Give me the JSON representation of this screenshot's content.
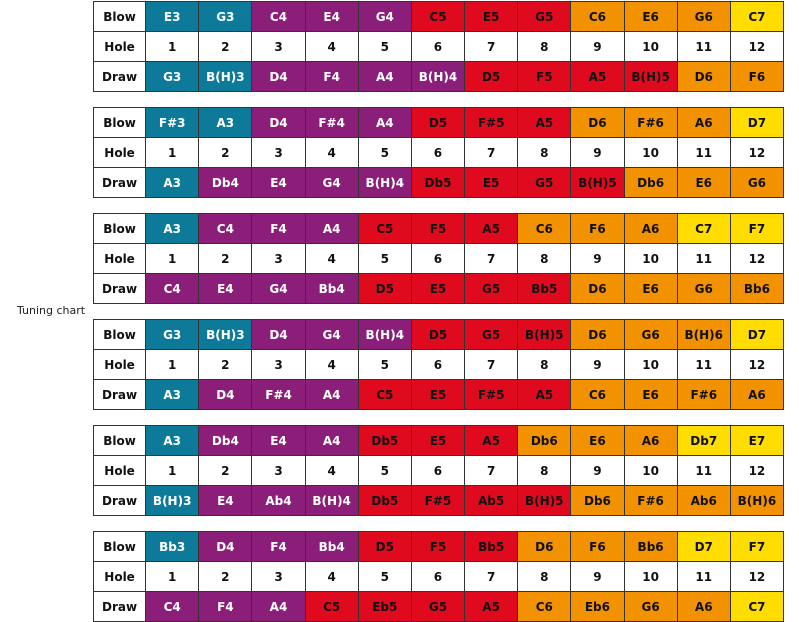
{
  "side_label": "Tuning chart",
  "colors": {
    "teal": "#0e7a99",
    "purple": "#8b1e79",
    "red": "#e00a1f",
    "orange": "#f39200",
    "yellow": "#ffdd00"
  },
  "row_labels": {
    "blow": "Blow",
    "hole": "Hole",
    "draw": "Draw"
  },
  "hole_numbers": [
    "1",
    "2",
    "3",
    "4",
    "5",
    "6",
    "7",
    "8",
    "9",
    "10",
    "11",
    "12"
  ],
  "charts": [
    {
      "blow": [
        "E3",
        "G3",
        "C4",
        "E4",
        "G4",
        "C5",
        "E5",
        "G5",
        "C6",
        "E6",
        "G6",
        "C7"
      ],
      "blow_colors": [
        "teal",
        "teal",
        "purple",
        "purple",
        "purple",
        "red",
        "red",
        "red",
        "orange",
        "orange",
        "orange",
        "yellow"
      ],
      "draw": [
        "G3",
        "B(H)3",
        "D4",
        "F4",
        "A4",
        "B(H)4",
        "D5",
        "F5",
        "A5",
        "B(H)5",
        "D6",
        "F6"
      ],
      "draw_colors": [
        "teal",
        "teal",
        "purple",
        "purple",
        "purple",
        "purple",
        "red",
        "red",
        "red",
        "red",
        "orange",
        "orange"
      ]
    },
    {
      "blow": [
        "F#3",
        "A3",
        "D4",
        "F#4",
        "A4",
        "D5",
        "F#5",
        "A5",
        "D6",
        "F#6",
        "A6",
        "D7"
      ],
      "blow_colors": [
        "teal",
        "teal",
        "purple",
        "purple",
        "purple",
        "red",
        "red",
        "red",
        "orange",
        "orange",
        "orange",
        "yellow"
      ],
      "draw": [
        "A3",
        "Db4",
        "E4",
        "G4",
        "B(H)4",
        "Db5",
        "E5",
        "G5",
        "B(H)5",
        "Db6",
        "E6",
        "G6"
      ],
      "draw_colors": [
        "teal",
        "purple",
        "purple",
        "purple",
        "purple",
        "red",
        "red",
        "red",
        "red",
        "orange",
        "orange",
        "orange"
      ]
    },
    {
      "blow": [
        "A3",
        "C4",
        "F4",
        "A4",
        "C5",
        "F5",
        "A5",
        "C6",
        "F6",
        "A6",
        "C7",
        "F7"
      ],
      "blow_colors": [
        "teal",
        "purple",
        "purple",
        "purple",
        "red",
        "red",
        "red",
        "orange",
        "orange",
        "orange",
        "yellow",
        "yellow"
      ],
      "draw": [
        "C4",
        "E4",
        "G4",
        "Bb4",
        "D5",
        "E5",
        "G5",
        "Bb5",
        "D6",
        "E6",
        "G6",
        "Bb6"
      ],
      "draw_colors": [
        "purple",
        "purple",
        "purple",
        "purple",
        "red",
        "red",
        "red",
        "red",
        "orange",
        "orange",
        "orange",
        "orange"
      ]
    },
    {
      "blow": [
        "G3",
        "B(H)3",
        "D4",
        "G4",
        "B(H)4",
        "D5",
        "G5",
        "B(H)5",
        "D6",
        "G6",
        "B(H)6",
        "D7"
      ],
      "blow_colors": [
        "teal",
        "teal",
        "purple",
        "purple",
        "purple",
        "red",
        "red",
        "red",
        "orange",
        "orange",
        "orange",
        "yellow"
      ],
      "draw": [
        "A3",
        "D4",
        "F#4",
        "A4",
        "C5",
        "E5",
        "F#5",
        "A5",
        "C6",
        "E6",
        "F#6",
        "A6"
      ],
      "draw_colors": [
        "teal",
        "purple",
        "purple",
        "purple",
        "red",
        "red",
        "red",
        "red",
        "orange",
        "orange",
        "orange",
        "orange"
      ]
    },
    {
      "blow": [
        "A3",
        "Db4",
        "E4",
        "A4",
        "Db5",
        "E5",
        "A5",
        "Db6",
        "E6",
        "A6",
        "Db7",
        "E7"
      ],
      "blow_colors": [
        "teal",
        "purple",
        "purple",
        "purple",
        "red",
        "red",
        "red",
        "orange",
        "orange",
        "orange",
        "yellow",
        "yellow"
      ],
      "draw": [
        "B(H)3",
        "E4",
        "Ab4",
        "B(H)4",
        "Db5",
        "F#5",
        "Ab5",
        "B(H)5",
        "Db6",
        "F#6",
        "Ab6",
        "B(H)6"
      ],
      "draw_colors": [
        "teal",
        "purple",
        "purple",
        "purple",
        "red",
        "red",
        "red",
        "red",
        "orange",
        "orange",
        "orange",
        "orange"
      ]
    },
    {
      "blow": [
        "Bb3",
        "D4",
        "F4",
        "Bb4",
        "D5",
        "F5",
        "Bb5",
        "D6",
        "F6",
        "Bb6",
        "D7",
        "F7"
      ],
      "blow_colors": [
        "teal",
        "purple",
        "purple",
        "purple",
        "red",
        "red",
        "red",
        "orange",
        "orange",
        "orange",
        "yellow",
        "yellow"
      ],
      "draw": [
        "C4",
        "F4",
        "A4",
        "C5",
        "Eb5",
        "G5",
        "A5",
        "C6",
        "Eb6",
        "G6",
        "A6",
        "C7"
      ],
      "draw_colors": [
        "purple",
        "purple",
        "purple",
        "red",
        "red",
        "red",
        "red",
        "orange",
        "orange",
        "orange",
        "orange",
        "yellow"
      ]
    }
  ]
}
